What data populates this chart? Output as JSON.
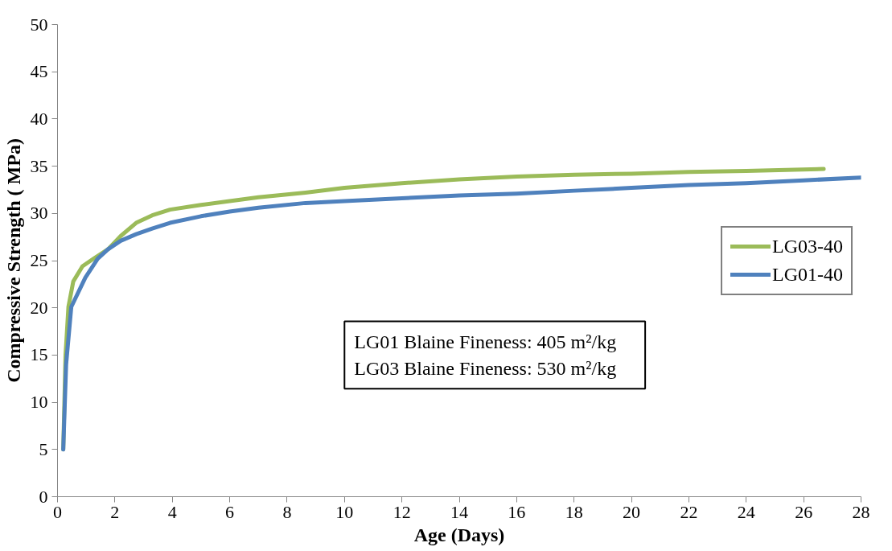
{
  "chart_data": {
    "type": "line",
    "xlabel": "Age (Days)",
    "ylabel": "Compressive Strength ( MPa)",
    "xlim": [
      0,
      28
    ],
    "xticks": [
      0,
      2,
      4,
      6,
      8,
      10,
      12,
      14,
      16,
      18,
      20,
      22,
      24,
      26,
      28
    ],
    "ylim": [
      0,
      50
    ],
    "yticks": [
      0,
      5,
      10,
      15,
      20,
      25,
      30,
      35,
      40,
      45,
      50
    ],
    "grid": false,
    "legend": "right",
    "marker": "none",
    "line_style": "solid",
    "annotations": [
      "LG01  Blaine  Fineness:  405  m²/kg",
      "LG03  Blaine  Fineness: 530  m²/kg"
    ],
    "series": [
      {
        "name": "LG03-40",
        "color": "#9bbb59",
        "x": [
          0.2,
          0.28,
          0.38,
          0.55,
          0.87,
          1.3,
          1.76,
          2.2,
          2.74,
          3.3,
          3.92,
          5,
          6,
          7,
          8.64,
          10,
          12,
          14,
          16,
          18,
          20,
          22,
          24,
          26.7
        ],
        "values": [
          5,
          15,
          20.1,
          22.8,
          24.4,
          25.3,
          26.2,
          27.6,
          29.0,
          29.8,
          30.4,
          30.9,
          31.3,
          31.7,
          32.2,
          32.7,
          33.2,
          33.6,
          33.9,
          34.1,
          34.2,
          34.4,
          34.5,
          34.7
        ]
      },
      {
        "name": "LG01-40",
        "color": "#4f81bd",
        "x": [
          0.2,
          0.3,
          0.48,
          0.97,
          1.4,
          1.76,
          2.2,
          2.74,
          3.3,
          3.92,
          5,
          6,
          7,
          8.64,
          10,
          12,
          14,
          16,
          18,
          20,
          22,
          24,
          26,
          28
        ],
        "values": [
          5,
          14,
          20.1,
          23.2,
          25.2,
          26.2,
          27.1,
          27.8,
          28.4,
          29.0,
          29.7,
          30.2,
          30.6,
          31.1,
          31.3,
          31.6,
          31.9,
          32.1,
          32.4,
          32.7,
          33.0,
          33.2,
          33.5,
          33.8
        ]
      }
    ]
  }
}
